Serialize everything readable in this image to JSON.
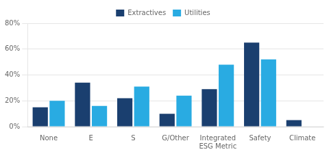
{
  "chart_data": {
    "type": "bar",
    "categories": [
      "None",
      "E",
      "S",
      "G/Other",
      "Integrated\nESG Metric",
      "Safety",
      "Climate"
    ],
    "series": [
      {
        "name": "Extractives",
        "color": "#1a3f6f",
        "values": [
          15,
          34,
          22,
          10,
          29,
          65,
          5
        ]
      },
      {
        "name": "Utilities",
        "color": "#29abe2",
        "values": [
          20,
          16,
          31,
          24,
          48,
          52,
          0
        ]
      }
    ],
    "ylim": [
      0,
      80
    ],
    "yticks": [
      {
        "value": 0,
        "label": "0%"
      },
      {
        "value": 20,
        "label": "20%"
      },
      {
        "value": 40,
        "label": "40%"
      },
      {
        "value": 60,
        "label": "60%"
      },
      {
        "value": 80,
        "label": "80%"
      }
    ],
    "grid": true,
    "legend": "top"
  }
}
